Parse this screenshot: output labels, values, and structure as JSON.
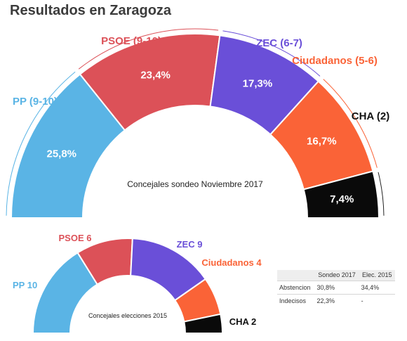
{
  "title": "Resultados en Zaragoza",
  "chart_data": [
    {
      "type": "pie",
      "variant": "semicircle-donut",
      "subtitle": "Concejales sondeo Noviembre 2017",
      "parties": [
        "PP",
        "PSOE",
        "ZEC",
        "Ciudadanos",
        "CHA"
      ],
      "values": [
        25.8,
        23.4,
        17.3,
        16.7,
        7.4
      ],
      "value_labels": [
        "25,8%",
        "23,4%",
        "17,3%",
        "16,7%",
        "7,4%"
      ],
      "seat_labels": [
        "PP (9-10)",
        "PSOE (9-10)",
        "ZEC (6-7)",
        "Ciudadanos (5-6)",
        "CHA (2)"
      ],
      "colors": [
        "#5ab4e5",
        "#dc5158",
        "#6a4fd8",
        "#fa6337",
        "#0a0a0a"
      ]
    },
    {
      "type": "pie",
      "variant": "semicircle-donut",
      "subtitle": "Concejales elecciones 2015",
      "parties": [
        "PP",
        "PSOE",
        "ZEC",
        "Ciudadanos",
        "CHA"
      ],
      "values": [
        10,
        6,
        9,
        4,
        2
      ],
      "seat_labels": [
        "PP 10",
        "PSOE 6",
        "ZEC 9",
        "Ciudadanos 4",
        "CHA 2"
      ],
      "colors": [
        "#5ab4e5",
        "#dc5158",
        "#6a4fd8",
        "#fa6337",
        "#0a0a0a"
      ]
    }
  ],
  "table": {
    "headers": [
      "",
      "Sondeo 2017",
      "Elec. 2015"
    ],
    "rows": [
      [
        "Abstencion",
        "30,8%",
        "34,4%"
      ],
      [
        "Indecisos",
        "22,3%",
        "-"
      ]
    ]
  }
}
